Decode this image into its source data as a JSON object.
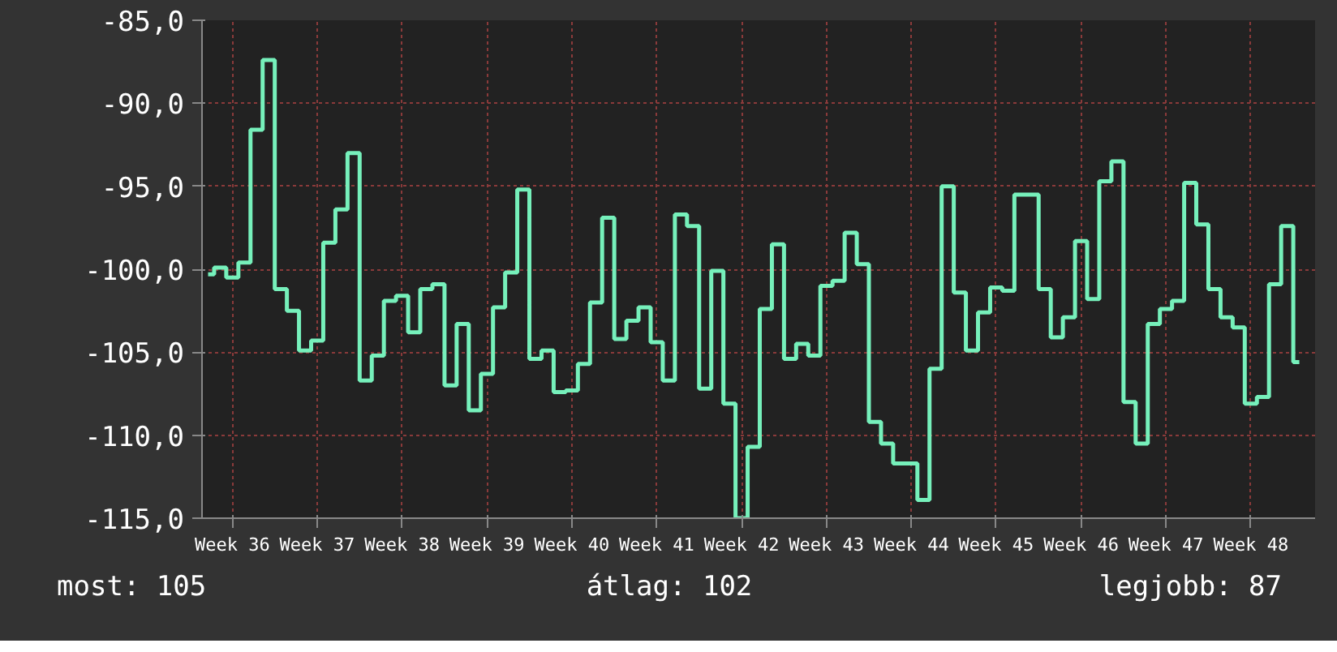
{
  "chart_data": {
    "type": "step",
    "line_style": "solid",
    "marker": "none",
    "grid": true,
    "categories": [
      null,
      null,
      "Week 36",
      null,
      null,
      null,
      null,
      null,
      null,
      "Week 37",
      null,
      null,
      null,
      null,
      null,
      null,
      "Week 38",
      null,
      null,
      null,
      null,
      null,
      null,
      "Week 39",
      null,
      null,
      null,
      null,
      null,
      null,
      "Week 40",
      null,
      null,
      null,
      null,
      null,
      null,
      "Week 41",
      null,
      null,
      null,
      null,
      null,
      null,
      "Week 42",
      null,
      null,
      null,
      null,
      null,
      null,
      "Week 43",
      null,
      null,
      null,
      null,
      null,
      null,
      "Week 44",
      null,
      null,
      null,
      null,
      null,
      null,
      "Week 45",
      null,
      null,
      null,
      null,
      null,
      null,
      "Week 46",
      null,
      null,
      null,
      null,
      null,
      null,
      "Week 47",
      null,
      null,
      null,
      null,
      null,
      null,
      "Week 48",
      null,
      null,
      null,
      null
    ],
    "ylim": [
      -115,
      -85
    ],
    "yticks": [
      {
        "value": -115,
        "label": "-115,0"
      },
      {
        "value": -110,
        "label": "-110,0"
      },
      {
        "value": -105,
        "label": "-105,0"
      },
      {
        "value": -100,
        "label": "-100,0"
      },
      {
        "value": -95,
        "label": "-95,0"
      },
      {
        "value": -90,
        "label": "-90,0"
      },
      {
        "value": -85,
        "label": "-85,0"
      }
    ],
    "series": [
      {
        "color": "#76f0bb",
        "values": [
          -100.3,
          -99.9,
          -100.5,
          -99.6,
          -91.6,
          -87.4,
          -101.2,
          -102.5,
          -104.9,
          -104.3,
          -98.4,
          -96.4,
          -93.0,
          -106.7,
          -105.2,
          -101.9,
          -101.6,
          -103.8,
          -101.2,
          -100.9,
          -107.0,
          -103.3,
          -108.5,
          -106.3,
          -102.3,
          -100.2,
          -95.2,
          -105.4,
          -104.9,
          -107.4,
          -107.3,
          -105.7,
          -102.0,
          -96.9,
          -104.2,
          -103.1,
          -102.3,
          -104.4,
          -106.7,
          -96.7,
          -97.4,
          -107.2,
          -100.1,
          -108.1,
          -115.0,
          -110.7,
          -102.4,
          -98.5,
          -105.4,
          -104.5,
          -105.2,
          -101.0,
          -100.7,
          -97.8,
          -99.7,
          -109.2,
          -110.5,
          -111.7,
          -111.7,
          -113.9,
          -106.0,
          -95.0,
          -101.4,
          -104.9,
          -102.6,
          -101.1,
          -101.3,
          -95.5,
          -95.5,
          -101.2,
          -104.1,
          -102.9,
          -98.3,
          -101.8,
          -94.7,
          -93.5,
          -108.0,
          -110.5,
          -103.3,
          -102.4,
          -101.9,
          -94.8,
          -97.3,
          -101.2,
          -102.9,
          -103.5,
          -108.1,
          -107.7,
          -100.9,
          -97.4,
          -105.6
        ]
      }
    ],
    "annotations": [
      "most: 105",
      "átlag: 102",
      "legjobb: 87"
    ]
  }
}
